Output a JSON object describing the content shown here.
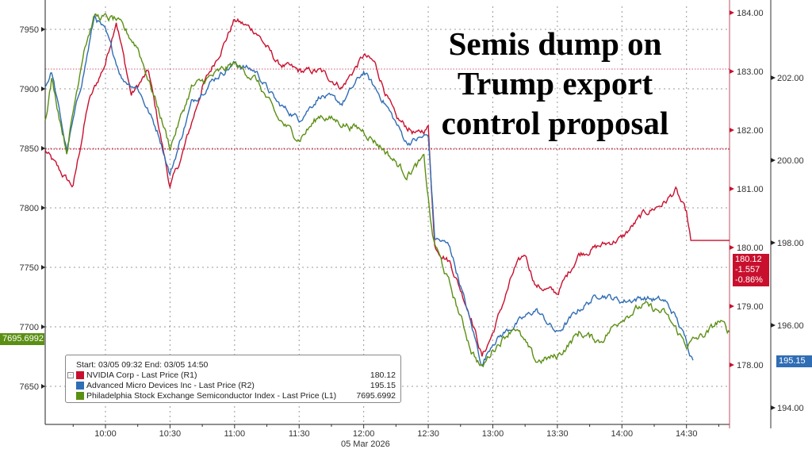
{
  "chart_data": {
    "type": "line",
    "title": "Semis dump on Trump export control proposal",
    "title_lines": [
      "Semis dump on",
      "Trump export",
      "control proposal"
    ],
    "date_label": "05 Mar 2026",
    "x_ticks": [
      "10:00",
      "10:30",
      "11:00",
      "11:30",
      "12:00",
      "12:30",
      "13:00",
      "13:30",
      "14:00",
      "14:30"
    ],
    "x_range": [
      "09:32",
      "14:50"
    ],
    "axes": {
      "L1": {
        "range": [
          7610,
          7975
        ],
        "ticks": [
          "7650",
          "7700",
          "7750",
          "7800",
          "7850",
          "7900",
          "7950"
        ]
      },
      "R1": {
        "range": [
          177.45,
          184.2
        ],
        "ticks": [
          "178.00",
          "179.00",
          "180.00",
          "181.00",
          "182.00",
          "183.00",
          "184.00"
        ]
      },
      "R2": {
        "range": [
          193.6,
          204
        ],
        "ticks": [
          "194.00",
          "196.00",
          "198.00",
          "200.00",
          "202.00"
        ]
      }
    },
    "reference_lines": [
      {
        "axis": "R1",
        "value": 181.677,
        "color": "#c8102e"
      },
      {
        "axis": "R1",
        "value": 183.04,
        "color": "#d98a9a"
      }
    ],
    "legend": {
      "header": "Start: 03/05 09:32 End: 03/05 14:50",
      "position": "bottom-left"
    },
    "series": [
      {
        "name": "NVIDIA Corp - Last Price (R1)",
        "axis": "R1",
        "color": "#c8102e",
        "last": "180.12",
        "change": "-1.557",
        "pct": "-0.86%",
        "x": [
          "09:32",
          "09:40",
          "09:45",
          "09:52",
          "10:00",
          "10:05",
          "10:12",
          "10:20",
          "10:30",
          "10:35",
          "10:45",
          "10:55",
          "11:00",
          "11:10",
          "11:20",
          "11:30",
          "11:40",
          "11:50",
          "12:00",
          "12:05",
          "12:15",
          "12:25",
          "12:30",
          "12:33",
          "12:40",
          "12:50",
          "12:55",
          "13:00",
          "13:10",
          "13:15",
          "13:20",
          "13:30",
          "13:40",
          "13:50",
          "14:00",
          "14:10",
          "14:20",
          "14:25",
          "14:30",
          "14:32",
          "14:50"
        ],
        "y": [
          181.65,
          181.24,
          181.04,
          182.46,
          183.14,
          183.88,
          182.6,
          183.0,
          181.04,
          181.5,
          182.73,
          183.47,
          183.88,
          183.68,
          183.14,
          183.0,
          183.0,
          182.73,
          183.27,
          183.14,
          182.19,
          181.92,
          182.05,
          180.03,
          179.76,
          178.81,
          178.14,
          178.54,
          179.62,
          179.89,
          179.35,
          179.22,
          179.89,
          180.03,
          180.16,
          180.57,
          180.77,
          180.97,
          180.57,
          180.12,
          180.12
        ]
      },
      {
        "name": "Advanced Micro Devices Inc - Last Price (R2)",
        "axis": "R2",
        "color": "#2f6db4",
        "last": "195.15",
        "x": [
          "09:32",
          "09:35",
          "09:42",
          "09:50",
          "09:55",
          "10:00",
          "10:08",
          "10:15",
          "10:25",
          "10:30",
          "10:40",
          "10:50",
          "11:00",
          "11:10",
          "11:20",
          "11:30",
          "11:40",
          "11:50",
          "12:00",
          "12:10",
          "12:20",
          "12:30",
          "12:33",
          "12:40",
          "12:50",
          "12:55",
          "13:00",
          "13:10",
          "13:20",
          "13:30",
          "13:40",
          "13:50",
          "14:00",
          "14:10",
          "14:20",
          "14:25",
          "14:30",
          "14:33"
        ],
        "y": [
          201.77,
          202.15,
          200.23,
          202.15,
          203.5,
          203.1,
          201.96,
          201.77,
          200.6,
          199.65,
          201.38,
          201.96,
          202.35,
          202.15,
          201.38,
          201.0,
          201.58,
          201.38,
          202.15,
          201.38,
          200.42,
          200.6,
          198.12,
          197.92,
          196.0,
          195.04,
          195.6,
          196.0,
          196.38,
          195.8,
          196.38,
          196.77,
          196.58,
          196.67,
          196.58,
          196.2,
          195.6,
          195.15
        ]
      },
      {
        "name": "Philadelphia Stock Exchange Semiconductor Index - Last Price (L1)",
        "axis": "L1",
        "color": "#5b8f14",
        "last": "7695.6992",
        "x": [
          "09:32",
          "09:35",
          "09:42",
          "09:50",
          "09:55",
          "10:05",
          "10:15",
          "10:25",
          "10:30",
          "10:40",
          "10:50",
          "11:00",
          "11:10",
          "11:20",
          "11:30",
          "11:40",
          "11:50",
          "12:00",
          "12:10",
          "12:20",
          "12:28",
          "12:32",
          "12:40",
          "12:50",
          "12:55",
          "13:00",
          "13:10",
          "13:20",
          "13:30",
          "13:40",
          "13:50",
          "14:00",
          "14:10",
          "14:20",
          "14:30",
          "14:40",
          "14:45",
          "14:50"
        ],
        "y": [
          7875,
          7908,
          7848,
          7935,
          7961,
          7958,
          7935,
          7881,
          7851,
          7901,
          7911,
          7921,
          7908,
          7875,
          7858,
          7878,
          7871,
          7865,
          7848,
          7828,
          7841,
          7775,
          7735,
          7681,
          7665,
          7681,
          7701,
          7671,
          7675,
          7695,
          7688,
          7708,
          7718,
          7711,
          7685,
          7695,
          7705,
          7695.6992
        ]
      }
    ]
  }
}
